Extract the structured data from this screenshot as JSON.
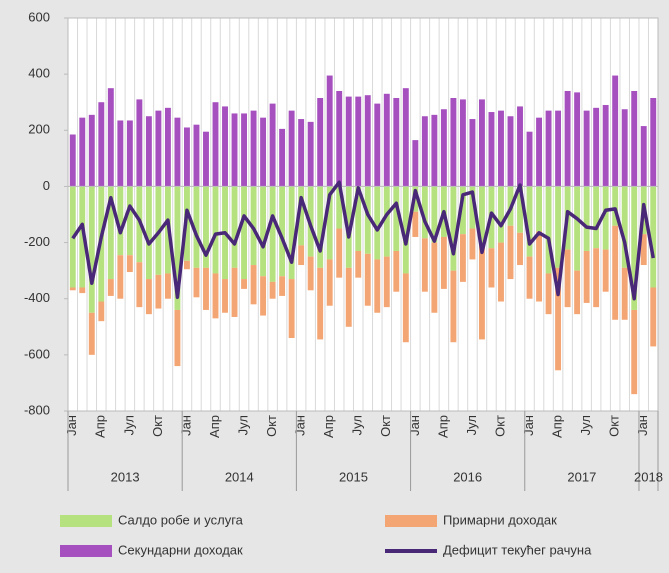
{
  "chart_data": {
    "type": "bar",
    "categories": [
      "Јан",
      null,
      null,
      "Апр",
      null,
      null,
      "Јул",
      null,
      null,
      "Окт",
      null,
      null,
      "Јан",
      null,
      null,
      "Апр",
      null,
      null,
      "Јул",
      null,
      null,
      "Окт",
      null,
      null,
      "Јан",
      null,
      null,
      "Апр",
      null,
      null,
      "Јул",
      null,
      null,
      "Окт",
      null,
      null,
      "Јан",
      null,
      null,
      "Апр",
      null,
      null,
      "Јул",
      null,
      null,
      "Окт",
      null,
      null,
      "Јан",
      null,
      null,
      "Апр",
      null,
      null,
      "Јул",
      null,
      null,
      "Окт",
      null,
      null,
      "Јан",
      null
    ],
    "years": [
      "2013",
      "2014",
      "2015",
      "2016",
      "2017",
      "2018"
    ],
    "series": [
      {
        "name": "Салдо робе и услуга",
        "type": "bar",
        "color": "#b5e27f",
        "values": [
          -360,
          -360,
          -450,
          -410,
          -330,
          -245,
          -245,
          -270,
          -330,
          -315,
          -310,
          -440,
          -265,
          -290,
          -290,
          -310,
          -330,
          -290,
          -330,
          -280,
          -320,
          -340,
          -320,
          -330,
          -210,
          -250,
          -290,
          -260,
          -150,
          -290,
          -230,
          -240,
          -260,
          -250,
          -230,
          -310,
          -90,
          -185,
          -200,
          -180,
          -300,
          -170,
          -150,
          -210,
          -220,
          -200,
          -140,
          -165,
          -250,
          -160,
          -310,
          -290,
          -225,
          -300,
          -230,
          -220,
          -225,
          -140,
          -290,
          -440,
          -170,
          -360
        ]
      },
      {
        "name": "Примарни доходак",
        "type": "bar",
        "color": "#f4a574",
        "values": [
          -10,
          -20,
          -150,
          -70,
          -60,
          -155,
          -60,
          -160,
          -125,
          -120,
          -90,
          -200,
          -30,
          -105,
          -150,
          -160,
          -120,
          -175,
          -35,
          -140,
          -140,
          -60,
          -70,
          -210,
          -70,
          -120,
          -255,
          -165,
          -175,
          -210,
          -95,
          -185,
          -190,
          -180,
          -145,
          -245,
          -90,
          -190,
          -250,
          -185,
          -255,
          -170,
          -110,
          -335,
          -140,
          -210,
          -190,
          -115,
          -150,
          -250,
          -145,
          -365,
          -205,
          -155,
          -185,
          -210,
          -150,
          -335,
          -185,
          -300,
          -110,
          -210
        ]
      },
      {
        "name": "Секундарни доходак",
        "type": "bar",
        "color": "#a64fbf",
        "values": [
          185,
          245,
          255,
          300,
          350,
          235,
          235,
          310,
          250,
          270,
          280,
          245,
          210,
          220,
          195,
          300,
          285,
          260,
          260,
          270,
          245,
          295,
          205,
          270,
          240,
          230,
          315,
          395,
          340,
          320,
          320,
          325,
          295,
          330,
          315,
          350,
          165,
          250,
          255,
          275,
          315,
          310,
          240,
          310,
          265,
          270,
          250,
          285,
          195,
          245,
          270,
          270,
          340,
          335,
          270,
          280,
          290,
          395,
          275,
          340,
          215,
          315
        ]
      },
      {
        "name": "Дефицит текућег рачуна",
        "type": "line",
        "color": "#4a2878",
        "values": [
          -185,
          -135,
          -345,
          -180,
          -40,
          -165,
          -70,
          -120,
          -205,
          -165,
          -120,
          -395,
          -85,
          -175,
          -245,
          -170,
          -165,
          -205,
          -105,
          -150,
          -215,
          -105,
          -185,
          -270,
          -40,
          -140,
          -230,
          -30,
          15,
          -180,
          -5,
          -100,
          -155,
          -100,
          -60,
          -205,
          -15,
          -125,
          -195,
          -90,
          -240,
          -30,
          -20,
          -235,
          -95,
          -140,
          -80,
          5,
          -205,
          -165,
          -185,
          -385,
          -90,
          -115,
          -145,
          -150,
          -85,
          -80,
          -200,
          -400,
          -65,
          -255
        ]
      }
    ],
    "ylim": [
      -800,
      600
    ],
    "yticks": [
      -800,
      -600,
      -400,
      -200,
      0,
      200,
      400,
      600
    ],
    "grid": true
  }
}
